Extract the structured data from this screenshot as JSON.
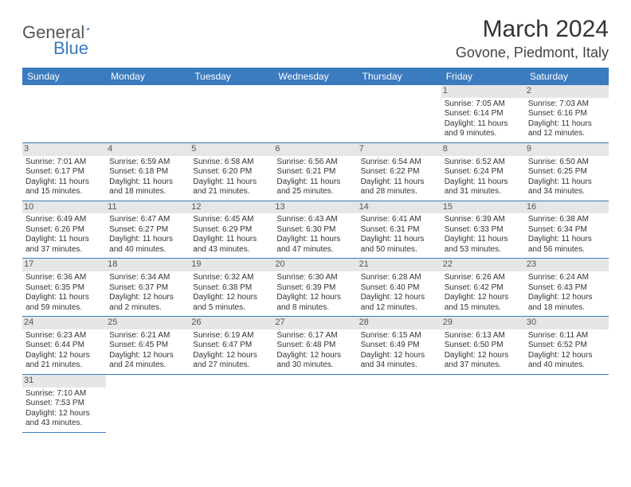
{
  "logo": {
    "word1": "General",
    "word2": "Blue"
  },
  "title": "March 2024",
  "location": "Govone, Piedmont, Italy",
  "colors": {
    "header_bg": "#3b7bbf",
    "header_text": "#ffffff",
    "daynum_bg": "#e6e6e6",
    "border": "#3b7bbf",
    "text": "#333333"
  },
  "weekdays": [
    "Sunday",
    "Monday",
    "Tuesday",
    "Wednesday",
    "Thursday",
    "Friday",
    "Saturday"
  ],
  "weeks": [
    [
      null,
      null,
      null,
      null,
      null,
      {
        "n": "1",
        "sr": "Sunrise: 7:05 AM",
        "ss": "Sunset: 6:14 PM",
        "dl": "Daylight: 11 hours and 9 minutes."
      },
      {
        "n": "2",
        "sr": "Sunrise: 7:03 AM",
        "ss": "Sunset: 6:16 PM",
        "dl": "Daylight: 11 hours and 12 minutes."
      }
    ],
    [
      {
        "n": "3",
        "sr": "Sunrise: 7:01 AM",
        "ss": "Sunset: 6:17 PM",
        "dl": "Daylight: 11 hours and 15 minutes."
      },
      {
        "n": "4",
        "sr": "Sunrise: 6:59 AM",
        "ss": "Sunset: 6:18 PM",
        "dl": "Daylight: 11 hours and 18 minutes."
      },
      {
        "n": "5",
        "sr": "Sunrise: 6:58 AM",
        "ss": "Sunset: 6:20 PM",
        "dl": "Daylight: 11 hours and 21 minutes."
      },
      {
        "n": "6",
        "sr": "Sunrise: 6:56 AM",
        "ss": "Sunset: 6:21 PM",
        "dl": "Daylight: 11 hours and 25 minutes."
      },
      {
        "n": "7",
        "sr": "Sunrise: 6:54 AM",
        "ss": "Sunset: 6:22 PM",
        "dl": "Daylight: 11 hours and 28 minutes."
      },
      {
        "n": "8",
        "sr": "Sunrise: 6:52 AM",
        "ss": "Sunset: 6:24 PM",
        "dl": "Daylight: 11 hours and 31 minutes."
      },
      {
        "n": "9",
        "sr": "Sunrise: 6:50 AM",
        "ss": "Sunset: 6:25 PM",
        "dl": "Daylight: 11 hours and 34 minutes."
      }
    ],
    [
      {
        "n": "10",
        "sr": "Sunrise: 6:49 AM",
        "ss": "Sunset: 6:26 PM",
        "dl": "Daylight: 11 hours and 37 minutes."
      },
      {
        "n": "11",
        "sr": "Sunrise: 6:47 AM",
        "ss": "Sunset: 6:27 PM",
        "dl": "Daylight: 11 hours and 40 minutes."
      },
      {
        "n": "12",
        "sr": "Sunrise: 6:45 AM",
        "ss": "Sunset: 6:29 PM",
        "dl": "Daylight: 11 hours and 43 minutes."
      },
      {
        "n": "13",
        "sr": "Sunrise: 6:43 AM",
        "ss": "Sunset: 6:30 PM",
        "dl": "Daylight: 11 hours and 47 minutes."
      },
      {
        "n": "14",
        "sr": "Sunrise: 6:41 AM",
        "ss": "Sunset: 6:31 PM",
        "dl": "Daylight: 11 hours and 50 minutes."
      },
      {
        "n": "15",
        "sr": "Sunrise: 6:39 AM",
        "ss": "Sunset: 6:33 PM",
        "dl": "Daylight: 11 hours and 53 minutes."
      },
      {
        "n": "16",
        "sr": "Sunrise: 6:38 AM",
        "ss": "Sunset: 6:34 PM",
        "dl": "Daylight: 11 hours and 56 minutes."
      }
    ],
    [
      {
        "n": "17",
        "sr": "Sunrise: 6:36 AM",
        "ss": "Sunset: 6:35 PM",
        "dl": "Daylight: 11 hours and 59 minutes."
      },
      {
        "n": "18",
        "sr": "Sunrise: 6:34 AM",
        "ss": "Sunset: 6:37 PM",
        "dl": "Daylight: 12 hours and 2 minutes."
      },
      {
        "n": "19",
        "sr": "Sunrise: 6:32 AM",
        "ss": "Sunset: 6:38 PM",
        "dl": "Daylight: 12 hours and 5 minutes."
      },
      {
        "n": "20",
        "sr": "Sunrise: 6:30 AM",
        "ss": "Sunset: 6:39 PM",
        "dl": "Daylight: 12 hours and 8 minutes."
      },
      {
        "n": "21",
        "sr": "Sunrise: 6:28 AM",
        "ss": "Sunset: 6:40 PM",
        "dl": "Daylight: 12 hours and 12 minutes."
      },
      {
        "n": "22",
        "sr": "Sunrise: 6:26 AM",
        "ss": "Sunset: 6:42 PM",
        "dl": "Daylight: 12 hours and 15 minutes."
      },
      {
        "n": "23",
        "sr": "Sunrise: 6:24 AM",
        "ss": "Sunset: 6:43 PM",
        "dl": "Daylight: 12 hours and 18 minutes."
      }
    ],
    [
      {
        "n": "24",
        "sr": "Sunrise: 6:23 AM",
        "ss": "Sunset: 6:44 PM",
        "dl": "Daylight: 12 hours and 21 minutes."
      },
      {
        "n": "25",
        "sr": "Sunrise: 6:21 AM",
        "ss": "Sunset: 6:45 PM",
        "dl": "Daylight: 12 hours and 24 minutes."
      },
      {
        "n": "26",
        "sr": "Sunrise: 6:19 AM",
        "ss": "Sunset: 6:47 PM",
        "dl": "Daylight: 12 hours and 27 minutes."
      },
      {
        "n": "27",
        "sr": "Sunrise: 6:17 AM",
        "ss": "Sunset: 6:48 PM",
        "dl": "Daylight: 12 hours and 30 minutes."
      },
      {
        "n": "28",
        "sr": "Sunrise: 6:15 AM",
        "ss": "Sunset: 6:49 PM",
        "dl": "Daylight: 12 hours and 34 minutes."
      },
      {
        "n": "29",
        "sr": "Sunrise: 6:13 AM",
        "ss": "Sunset: 6:50 PM",
        "dl": "Daylight: 12 hours and 37 minutes."
      },
      {
        "n": "30",
        "sr": "Sunrise: 6:11 AM",
        "ss": "Sunset: 6:52 PM",
        "dl": "Daylight: 12 hours and 40 minutes."
      }
    ],
    [
      {
        "n": "31",
        "sr": "Sunrise: 7:10 AM",
        "ss": "Sunset: 7:53 PM",
        "dl": "Daylight: 12 hours and 43 minutes."
      },
      null,
      null,
      null,
      null,
      null,
      null
    ]
  ]
}
